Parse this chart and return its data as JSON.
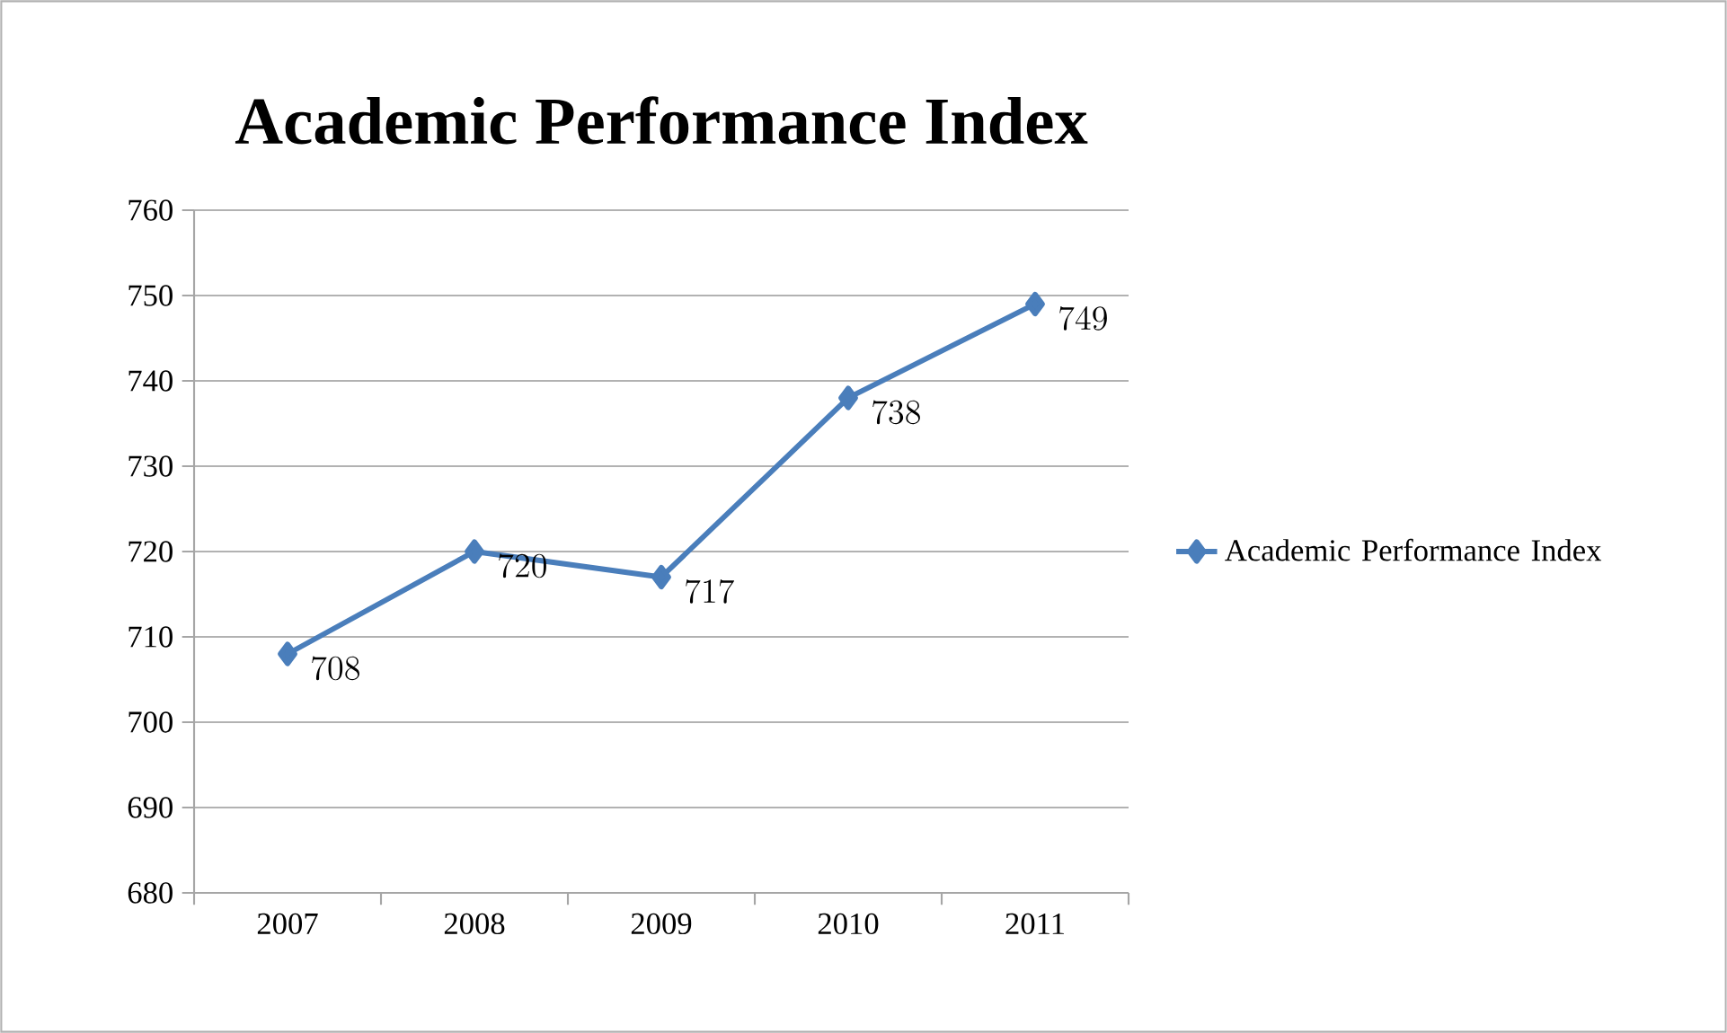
{
  "chart_data": {
    "type": "line",
    "title": "Academic Performance Index",
    "categories": [
      "2007",
      "2008",
      "2009",
      "2010",
      "2011"
    ],
    "series": [
      {
        "name": "Academic Performance Index",
        "color": "#4a7ebb",
        "values": [
          708,
          720,
          717,
          738,
          749
        ]
      }
    ],
    "ylim": [
      680,
      760
    ],
    "yticks": [
      680,
      690,
      700,
      710,
      720,
      730,
      740,
      750,
      760
    ],
    "grid": "y",
    "legend": "right",
    "marker": "diamond",
    "line_style": "solid",
    "data_labels": true
  }
}
